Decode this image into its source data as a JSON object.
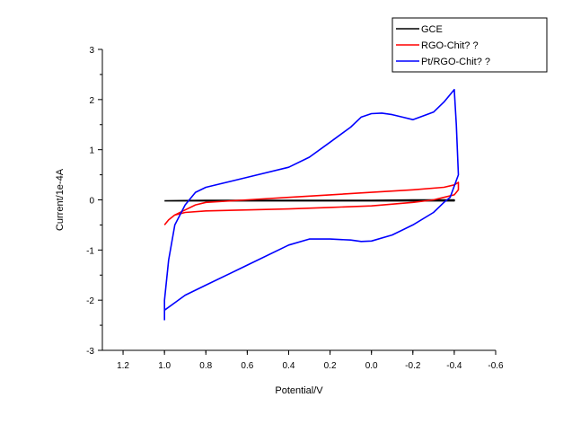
{
  "chart_data": {
    "type": "line",
    "xlabel": "Potential/V",
    "ylabel": "Current/1e-4A",
    "xlim": [
      1.3,
      -0.6
    ],
    "ylim": [
      -3,
      3
    ],
    "x_ticks": [
      "1.2",
      "1.0",
      "0.8",
      "0.6",
      "0.4",
      "0.2",
      "0.0",
      "-0.2",
      "-0.4",
      "-0.6"
    ],
    "x_tick_values": [
      1.2,
      1.0,
      0.8,
      0.6,
      0.4,
      0.2,
      0.0,
      -0.2,
      -0.4,
      -0.6
    ],
    "y_ticks": [
      "-3",
      "-2",
      "-1",
      "0",
      "1",
      "2",
      "3"
    ],
    "y_tick_values": [
      -3,
      -2,
      -1,
      0,
      1,
      2,
      3
    ],
    "grid": false,
    "legend_position": "top-right",
    "series": [
      {
        "name": "GCE",
        "color": "#000000",
        "x": [
          1.0,
          0.8,
          0.6,
          0.4,
          0.2,
          0.0,
          -0.2,
          -0.4,
          -0.4,
          -0.2,
          0.0,
          0.2,
          0.4,
          0.6,
          0.8,
          1.0
        ],
        "y": [
          -0.02,
          -0.02,
          -0.02,
          -0.02,
          -0.02,
          -0.02,
          -0.02,
          -0.02,
          0.0,
          0.0,
          -0.01,
          -0.01,
          -0.01,
          -0.01,
          -0.01,
          -0.02
        ]
      },
      {
        "name": "RGO-Chit? ?",
        "color": "#ff0000",
        "x": [
          1.0,
          0.98,
          0.95,
          0.9,
          0.85,
          0.8,
          0.6,
          0.4,
          0.2,
          0.0,
          -0.2,
          -0.35,
          -0.4,
          -0.42,
          -0.42,
          -0.4,
          -0.35,
          -0.3,
          -0.2,
          0.0,
          0.2,
          0.4,
          0.6,
          0.8,
          0.9,
          0.95,
          0.98,
          1.0
        ],
        "y": [
          -0.5,
          -0.4,
          -0.3,
          -0.2,
          -0.1,
          -0.05,
          0.0,
          0.05,
          0.1,
          0.15,
          0.2,
          0.25,
          0.3,
          0.35,
          0.2,
          0.1,
          0.05,
          0.0,
          -0.05,
          -0.12,
          -0.15,
          -0.18,
          -0.2,
          -0.22,
          -0.25,
          -0.3,
          -0.4,
          -0.5
        ]
      },
      {
        "name": "Pt/RGO-Chit? ?",
        "color": "#0000ff",
        "x": [
          1.0,
          1.0,
          0.98,
          0.95,
          0.9,
          0.85,
          0.8,
          0.6,
          0.4,
          0.3,
          0.2,
          0.1,
          0.05,
          0.0,
          -0.05,
          -0.1,
          -0.15,
          -0.2,
          -0.3,
          -0.35,
          -0.4,
          -0.41,
          -0.42,
          -0.38,
          -0.35,
          -0.3,
          -0.2,
          -0.1,
          0.0,
          0.05,
          0.1,
          0.2,
          0.3,
          0.4,
          0.6,
          0.8,
          0.9,
          0.95,
          1.0
        ],
        "y": [
          -2.4,
          -2.0,
          -1.2,
          -0.5,
          -0.1,
          0.15,
          0.25,
          0.45,
          0.65,
          0.85,
          1.15,
          1.45,
          1.65,
          1.72,
          1.73,
          1.7,
          1.65,
          1.6,
          1.75,
          1.95,
          2.2,
          1.5,
          0.5,
          0.05,
          -0.05,
          -0.25,
          -0.5,
          -0.7,
          -0.82,
          -0.83,
          -0.8,
          -0.78,
          -0.78,
          -0.9,
          -1.3,
          -1.7,
          -1.9,
          -2.05,
          -2.2
        ]
      }
    ]
  }
}
